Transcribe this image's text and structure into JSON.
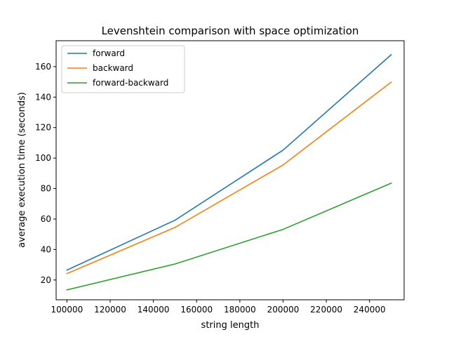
{
  "chart_data": {
    "type": "line",
    "title": "Levenshtein comparison with space optimization",
    "xlabel": "string length",
    "ylabel": "average execution time (seconds)",
    "x": [
      100000,
      150000,
      200000,
      250000
    ],
    "xlim": [
      95000,
      256000
    ],
    "ylim": [
      7,
      177
    ],
    "xticks": [
      100000,
      120000,
      140000,
      160000,
      180000,
      200000,
      220000,
      240000
    ],
    "yticks": [
      20,
      40,
      60,
      80,
      100,
      120,
      140,
      160
    ],
    "grid": false,
    "legend": "top-left",
    "series": [
      {
        "name": "forward",
        "color": "#1f77b4",
        "values": [
          26.5,
          59.2,
          105.2,
          167.8
        ]
      },
      {
        "name": "backward",
        "color": "#ff7f0e",
        "values": [
          24.2,
          54.5,
          95.5,
          149.8
        ]
      },
      {
        "name": "forward-backward",
        "color": "#2ca02c",
        "values": [
          13.5,
          30.5,
          53.2,
          83.5
        ]
      }
    ]
  }
}
